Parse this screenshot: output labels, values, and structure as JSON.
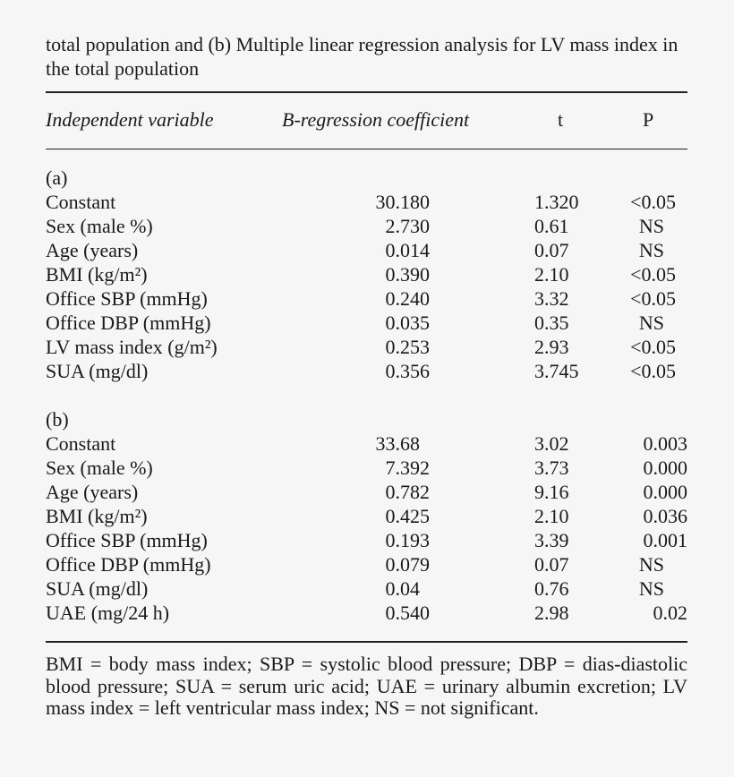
{
  "caption": "total population and (b) Multiple linear regression analysis for LV mass index in the total population",
  "headers": {
    "variable": "Independent variable",
    "b": "B-regression coefficient",
    "t": "t",
    "p": "P"
  },
  "sections": [
    {
      "label": "(a)",
      "rows": [
        {
          "var": "Constant",
          "b": "30.180",
          "t": "1.320",
          "p": "<0.05"
        },
        {
          "var": "Sex (male %)",
          "b": "2.730",
          "t": "0.61",
          "p": "NS"
        },
        {
          "var": "Age (years)",
          "b": "0.014",
          "t": "0.07",
          "p": "NS"
        },
        {
          "var": "BMI (kg/m²)",
          "b": "0.390",
          "t": "2.10",
          "p": "<0.05"
        },
        {
          "var": "Office SBP (mmHg)",
          "b": "0.240",
          "t": "3.32",
          "p": "<0.05"
        },
        {
          "var": "Office DBP (mmHg)",
          "b": "0.035",
          "t": "0.35",
          "p": "NS"
        },
        {
          "var": "LV mass index (g/m²)",
          "b": "0.253",
          "t": "2.93",
          "p": "<0.05"
        },
        {
          "var": "SUA (mg/dl)",
          "b": "0.356",
          "t": "3.745",
          "p": "<0.05"
        }
      ]
    },
    {
      "label": "(b)",
      "rows": [
        {
          "var": "Constant",
          "b": "33.68",
          "t": "3.02",
          "p": "0.003"
        },
        {
          "var": "Sex (male %)",
          "b": "7.392",
          "t": "3.73",
          "p": "0.000"
        },
        {
          "var": "Age (years)",
          "b": "0.782",
          "t": "9.16",
          "p": "0.000"
        },
        {
          "var": "BMI (kg/m²)",
          "b": "0.425",
          "t": "2.10",
          "p": "0.036"
        },
        {
          "var": "Office SBP (mmHg)",
          "b": "0.193",
          "t": "3.39",
          "p": "0.001"
        },
        {
          "var": "Office DBP (mmHg)",
          "b": "0.079",
          "t": "0.07",
          "p": "NS"
        },
        {
          "var": "SUA (mg/dl)",
          "b": "0.04",
          "t": "0.76",
          "p": "NS"
        },
        {
          "var": "UAE (mg/24 h)",
          "b": "0.540",
          "t": "2.98",
          "p": "0.02"
        }
      ]
    }
  ],
  "footnote": "BMI = body mass index; SBP = systolic blood pressure; DBP = dias-diastolic blood pressure; SUA = serum uric acid; UAE = urinary albumin excretion; LV mass index = left ventricular mass index; NS = not significant."
}
